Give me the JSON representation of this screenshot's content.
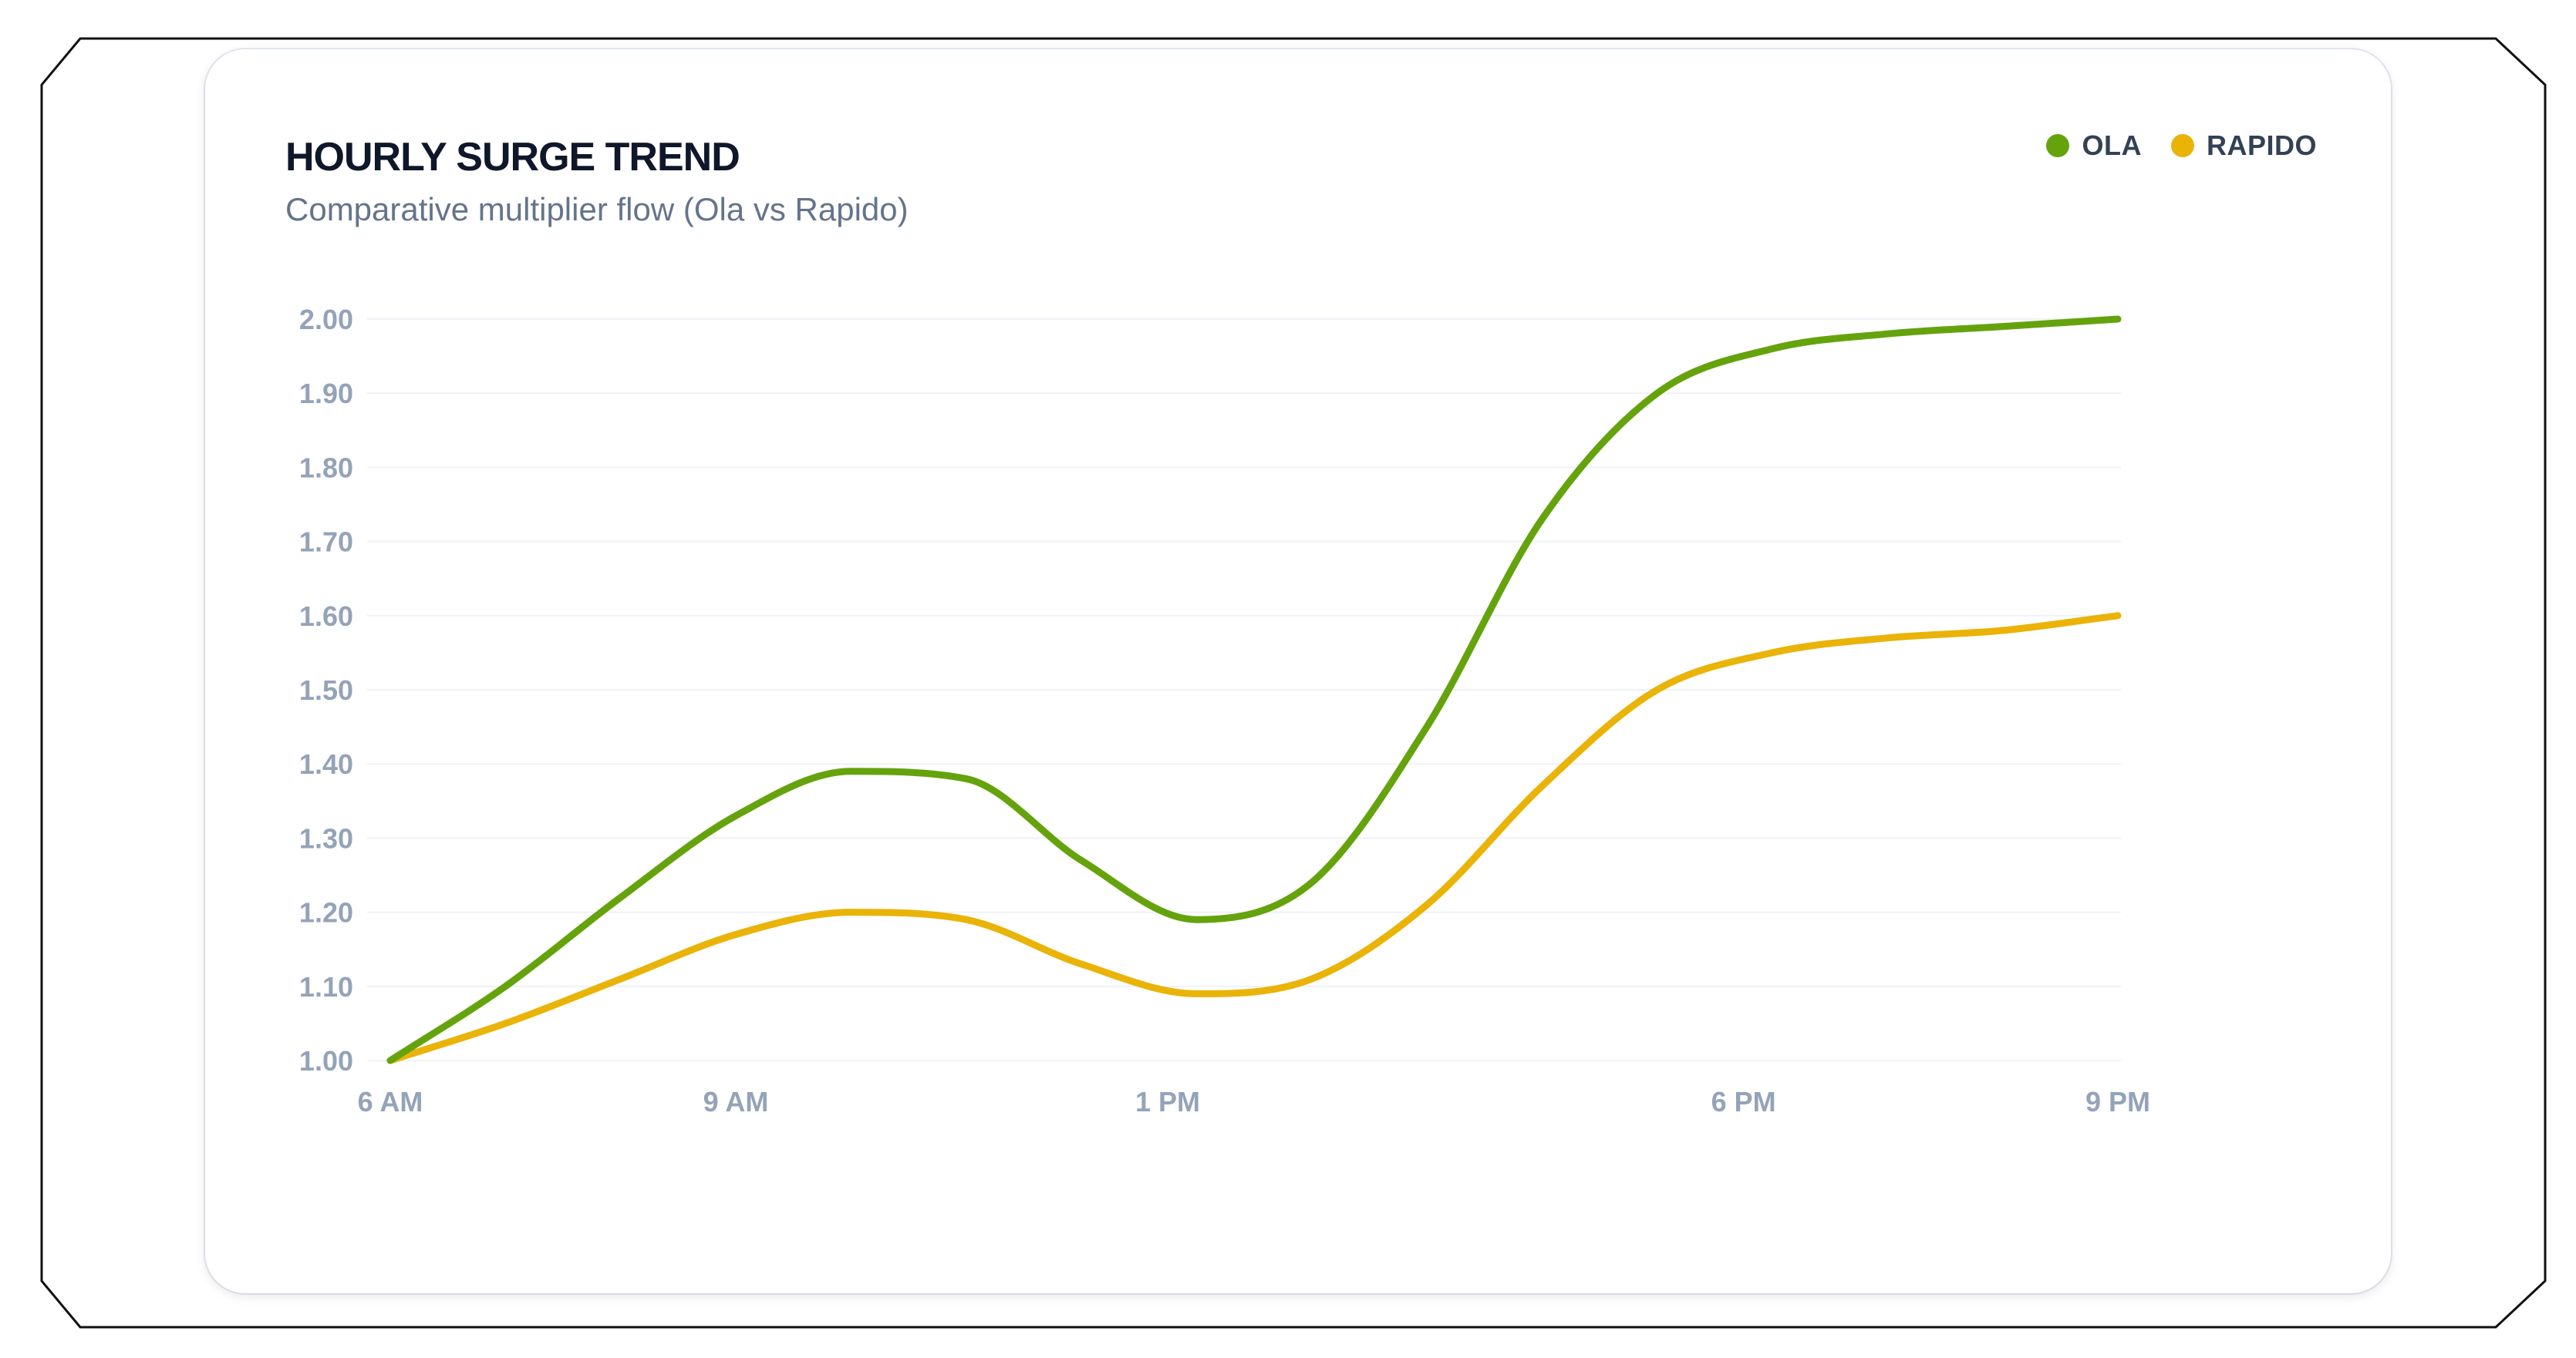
{
  "chart_data": {
    "type": "line",
    "title": "HOURLY SURGE TREND",
    "subtitle": "Comparative multiplier flow (Ola vs Rapido)",
    "xlabel": "",
    "ylabel": "",
    "categories": [
      "6 AM",
      "9 AM",
      "1 PM",
      "6 PM",
      "9 PM"
    ],
    "x": [
      6,
      7,
      8,
      9,
      10,
      11,
      12,
      13,
      14,
      15,
      16,
      17,
      18,
      19,
      20,
      21
    ],
    "series": [
      {
        "name": "OLA",
        "color": "#65a30d",
        "values": [
          1.0,
          1.1,
          1.22,
          1.33,
          1.39,
          1.38,
          1.27,
          1.19,
          1.24,
          1.45,
          1.73,
          1.9,
          1.96,
          1.98,
          1.99,
          2.0
        ]
      },
      {
        "name": "RAPIDO",
        "color": "#eab308",
        "values": [
          1.0,
          1.05,
          1.11,
          1.17,
          1.2,
          1.19,
          1.13,
          1.09,
          1.11,
          1.21,
          1.37,
          1.5,
          1.55,
          1.57,
          1.58,
          1.6
        ]
      }
    ],
    "x_ticks": [
      6,
      9,
      12.75,
      17.75,
      21
    ],
    "y_ticks": [
      "1.00",
      "1.10",
      "1.20",
      "1.30",
      "1.40",
      "1.50",
      "1.60",
      "1.70",
      "1.80",
      "1.90",
      "2.00"
    ],
    "ylim": [
      1.0,
      2.0
    ],
    "xlim": [
      6,
      21
    ],
    "grid": true,
    "legend": "top-right"
  }
}
